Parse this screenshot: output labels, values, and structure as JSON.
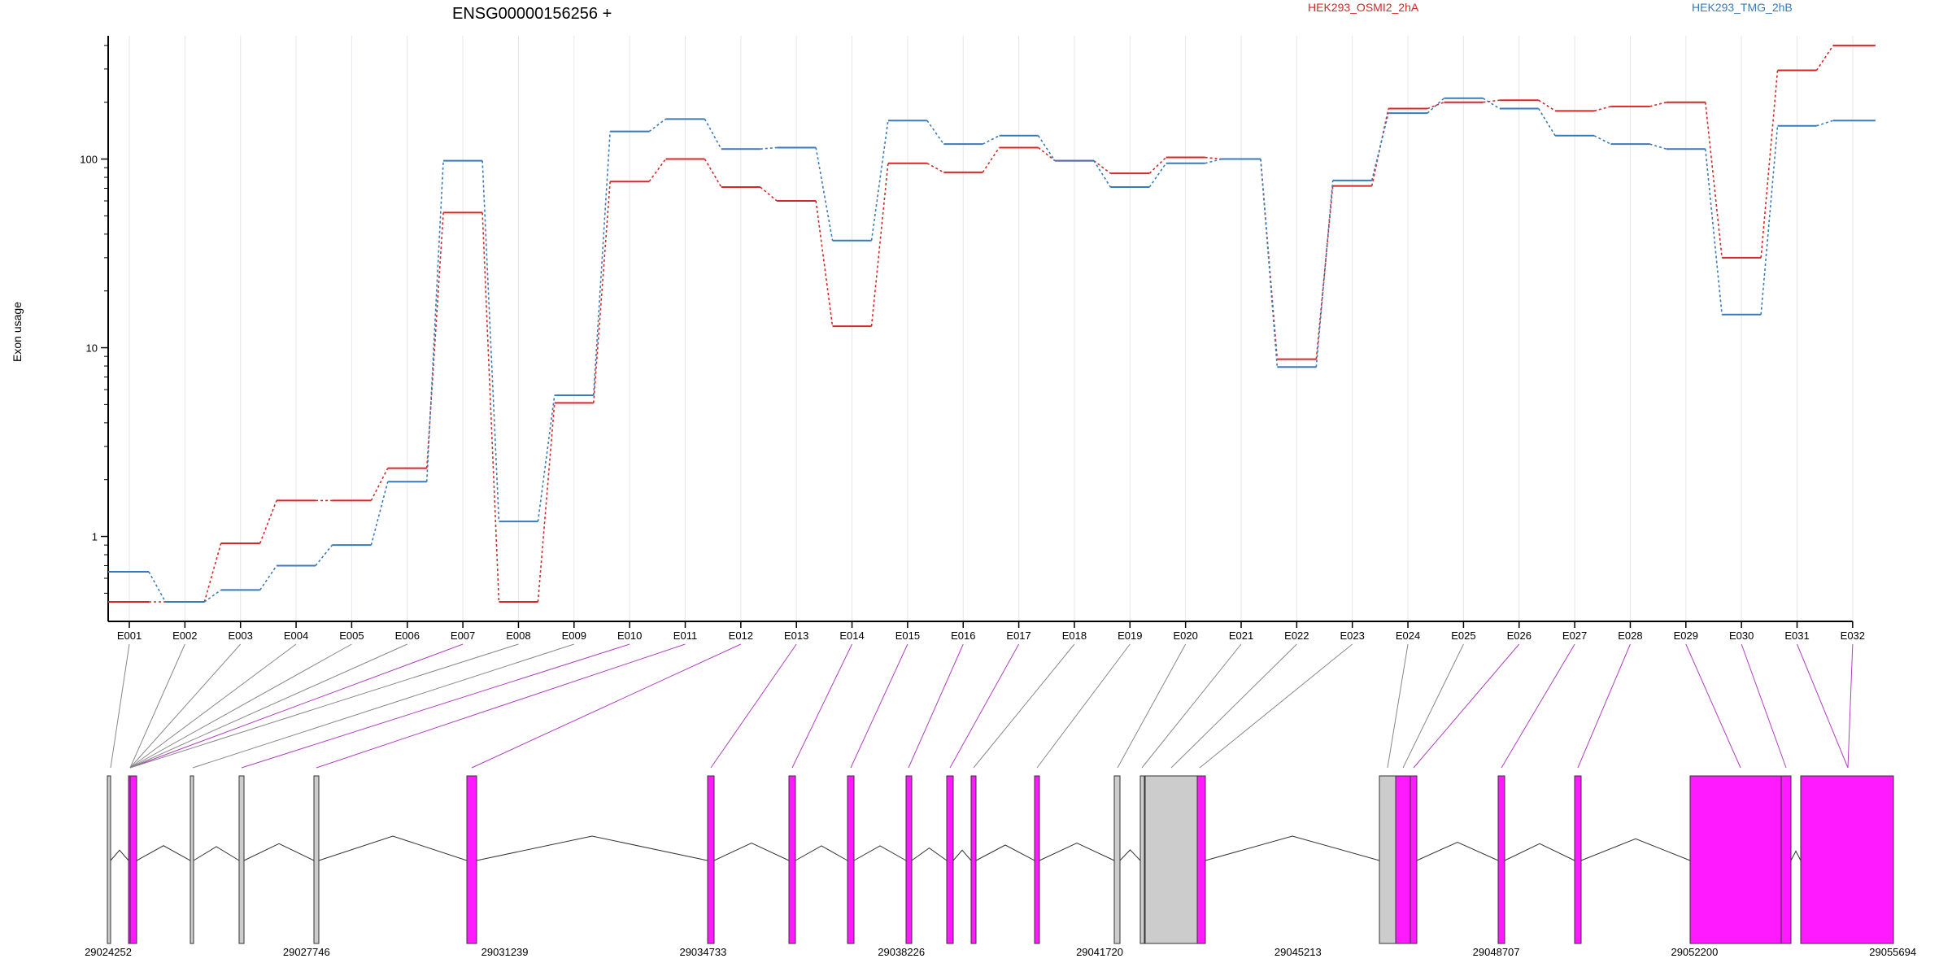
{
  "chart_data": {
    "type": "line",
    "title": "ENSG00000156256 +",
    "ylabel": "Exon usage",
    "yscale": "log",
    "ylim": [
      0.45,
      450
    ],
    "yticks": [
      1,
      10,
      100
    ],
    "ytick_labels": [
      "1",
      "10",
      "100"
    ],
    "categories": [
      "E001",
      "E002",
      "E003",
      "E004",
      "E005",
      "E006",
      "E007",
      "E008",
      "E009",
      "E010",
      "E011",
      "E012",
      "E013",
      "E014",
      "E015",
      "E016",
      "E017",
      "E018",
      "E019",
      "E020",
      "E021",
      "E022",
      "E023",
      "E024",
      "E025",
      "E026",
      "E027",
      "E028",
      "E029",
      "E030",
      "E031",
      "E032"
    ],
    "series": [
      {
        "name": "HEK293_OSMI2_2hA",
        "color": "#d62728",
        "values": [
          0.45,
          0.45,
          0.92,
          1.55,
          1.55,
          2.3,
          52,
          0.45,
          5.1,
          76,
          100,
          71,
          60,
          13,
          95,
          85,
          115,
          98,
          84,
          102,
          100,
          8.7,
          72,
          185,
          200,
          205,
          180,
          190,
          200,
          30,
          295,
          400
        ]
      },
      {
        "name": "HEK293_TMG_2hB",
        "color": "#3a7ab8",
        "values": [
          0.65,
          0.45,
          0.52,
          0.7,
          0.9,
          1.95,
          98,
          1.2,
          5.6,
          140,
          163,
          113,
          115,
          37,
          160,
          120,
          133,
          98,
          71,
          95,
          100,
          7.9,
          77,
          175,
          210,
          185,
          133,
          120,
          113,
          15,
          150,
          160
        ]
      }
    ],
    "grid": "vertical",
    "gene_model": {
      "genomic_ticks": [
        "29024252",
        "29027746",
        "29031239",
        "29034733",
        "29038226",
        "29041720",
        "29045213",
        "29048707",
        "29052200",
        "29055694"
      ],
      "bar_colors": {
        "tested": "#ff1aff",
        "untested": "#cccccc"
      },
      "exons": [
        {
          "id": "E001",
          "status": "untested"
        },
        {
          "id": "E002",
          "status": "untested"
        },
        {
          "id": "E003",
          "status": "untested"
        },
        {
          "id": "E004",
          "status": "untested"
        },
        {
          "id": "E005",
          "status": "untested"
        },
        {
          "id": "E006",
          "status": "untested"
        },
        {
          "id": "E007",
          "status": "tested"
        },
        {
          "id": "E008",
          "status": "untested"
        },
        {
          "id": "E009",
          "status": "untested"
        },
        {
          "id": "E010",
          "status": "tested"
        },
        {
          "id": "E011",
          "status": "tested"
        },
        {
          "id": "E012",
          "status": "tested"
        },
        {
          "id": "E013",
          "status": "tested"
        },
        {
          "id": "E014",
          "status": "tested"
        },
        {
          "id": "E015",
          "status": "tested"
        },
        {
          "id": "E016",
          "status": "tested"
        },
        {
          "id": "E017",
          "status": "tested"
        },
        {
          "id": "E018",
          "status": "untested"
        },
        {
          "id": "E019",
          "status": "untested"
        },
        {
          "id": "E020",
          "status": "untested"
        },
        {
          "id": "E021",
          "status": "untested"
        },
        {
          "id": "E022",
          "status": "untested"
        },
        {
          "id": "E023",
          "status": "untested"
        },
        {
          "id": "E024",
          "status": "untested"
        },
        {
          "id": "E025",
          "status": "untested"
        },
        {
          "id": "E026",
          "status": "tested"
        },
        {
          "id": "E027",
          "status": "tested"
        },
        {
          "id": "E028",
          "status": "tested"
        },
        {
          "id": "E029",
          "status": "tested"
        },
        {
          "id": "E030",
          "status": "tested"
        },
        {
          "id": "E031",
          "status": "tested"
        },
        {
          "id": "E032",
          "status": "tested"
        }
      ]
    }
  }
}
